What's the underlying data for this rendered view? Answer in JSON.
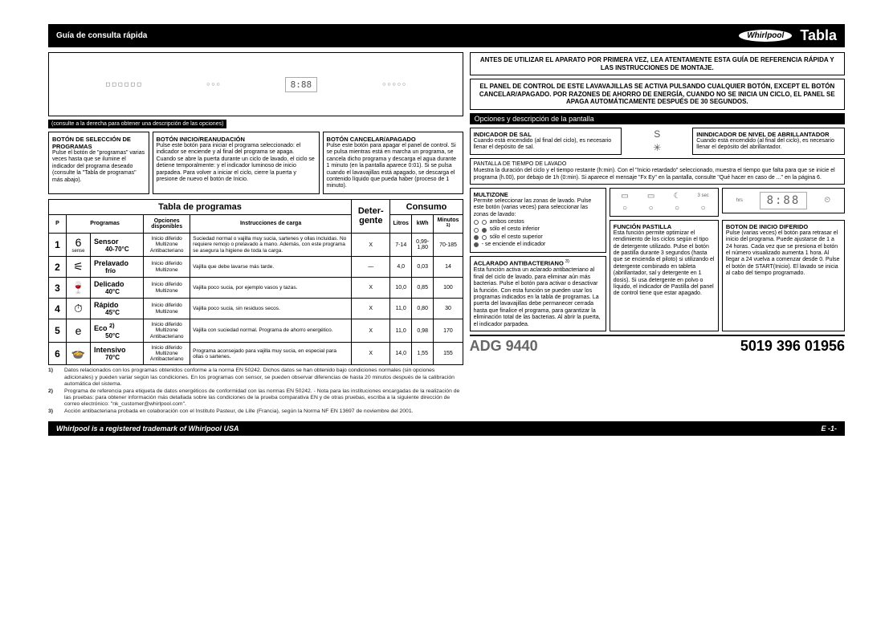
{
  "header": {
    "left": "Guía de consulta rápida",
    "right": "Tabla",
    "logo": "Whirlpool"
  },
  "panel": {
    "display": "8:88",
    "consult_note": "(consulte a la derecha para obtener una descripción de las opciones)"
  },
  "buttons": {
    "select": {
      "title": "BOTÓN DE SELECCIÓN DE PROGRAMAS",
      "body": "Pulse el botón de \"programas\" varias veces hasta que se ilumine el indicador del programa deseado (consulte la \"Tabla de programas\" más abajo)."
    },
    "start": {
      "title": "BOTÓN INICIO/REANUDACIÓN",
      "body": "Pulse este botón para iniciar el programa seleccionado: el indicador se enciende y al final del programa se apaga. Cuando se abre la puerta durante un ciclo de lavado, el ciclo se detiene temporalmente: y el indicador luminoso de inicio parpadea. Para volver a iniciar el ciclo, cierre la puerta y presione de nuevo el botón de Inicio."
    },
    "cancel": {
      "title": "BOTÓN CANCELAR/APAGADO",
      "body": "Pulse este botón para apagar el panel de control. Si se pulsa mientras está en marcha un programa, se cancela dicho programa y descarga el agua durante 1 minuto (en la pantalla aparece 0:01). Si se pulsa cuando el lavavajillas está apagado, se descarga el contenido líquido que pueda haber (proceso de 1 minuto)."
    }
  },
  "intro": {
    "box1": "ANTES DE UTILIZAR EL APARATO POR PRIMERA VEZ, LEA ATENTAMENTE ESTA GUÍA DE REFERENCIA RÁPIDA Y LAS INSTRUCCIONES DE MONTAJE.",
    "box2": "EL PANEL DE CONTROL DE ESTE LAVAVAJILLAS SE ACTIVA PULSANDO CUALQUIER BOTÓN, EXCEPT EL BOTÓN CANCELAR/APAGADO. POR RAZONES DE AHORRO DE ENERGÍA, CUANDO NO SE INICIA UN CICLO, EL PANEL SE APAGA AUTOMÁTICAMENTE DESPUÉS DE 30 SEGUNDOS."
  },
  "options_bar": "Opciones y descripción de la pantalla",
  "indicators": {
    "salt": {
      "title": "INDICADOR DE SAL",
      "body": "Cuando está encendido (al final del ciclo), es necesario llenar el depósito de sal."
    },
    "rinse": {
      "title": "ININDICADOR DE NIVEL DE ABRILLANTADOR",
      "body": "Cuando está encendido (al final del ciclo), es necesario llenar el depósito del abrillantador."
    }
  },
  "pantalla": {
    "title": "PANTALLA DE TIEMPO DE LAVADO",
    "body": "Muestra la duración del ciclo y el tiempo restante (h:min). Con el \"Inicio retardado\" seleccionado, muestra el tiempo que falta para que se inicie el programa (h.00), por debajo de 1h (0:min). Si aparece el mensaje \"Fx Ey\" en la pantalla, consulte \"Qué hacer en caso de ...\" en la página 6."
  },
  "multizone": {
    "title": "MULTIZONE",
    "body": "Permite seleccionar las zonas de lavado. Pulse este botón (varias veces) para seleccionar las zonas de lavado:",
    "opt1": "ambos cestos",
    "opt2": "sólo el cesto inferior",
    "opt3": "sólo el cesto superior",
    "opt4": "- se enciende el indicador"
  },
  "antibac": {
    "title": "ACLARADO ANTIBACTERIANO",
    "sup": "3)",
    "body": "Esta función activa un aclarado antibacteriano al final del ciclo de lavado, para eliminar aún más bacterias. Pulse el botón para activar o desactivar la función. Con esta función se pueden usar los programas indicados en la tabla de programas. La puerta del lavavajillas debe permanecer cerrada hasta que finalice el programa, para garantizar la eliminación total de las bacterias. Al abrir la puerta, el indicador parpadea."
  },
  "tablet": {
    "title": "FUNCIÓN PASTILLA",
    "body": "Esta función permite optimizar el rendimiento de los ciclos según el tipo de detergente utilizado. Pulse el botón de pastilla durante 3 segundos (hasta que se encienda el piloto) si utilizando el detergente combinado en tableta (abrillantador, sal y detergente en 1 dosis). Si usa detergente en polvo o líquido, el indicador de Pastilla del panel de control tiene que estar apagado."
  },
  "delay": {
    "title": "BOTON DE INICIO DIFERIDO",
    "body": "Pulse (varias veces) el botón para retrasar el inicio del programa. Puede ajustarse de 1 a 24 horas. Cada vez que se presiona el botón el número visualizado aumenta 1 hora. Al llegar a 24 vuelva a comenzar desde 0. Pulse el botón de START(Inicio). El lavado se inicia al cabo del tiempo programado."
  },
  "opt_panel": {
    "seg": "8:88",
    "hrs": "hrs",
    "sec": "3 sec"
  },
  "table": {
    "title": "Tabla de programas",
    "h_p": "P",
    "h_prog": "Programas",
    "h_opt": "Opciones disponibles",
    "h_instr": "Instrucciones de carga",
    "h_det": "Deter-gente",
    "h_cons": "Consumo",
    "h_l": "Litros",
    "h_kwh": "kWh",
    "h_min": "Minutos",
    "h_min_sup": "1)",
    "rows": [
      {
        "n": "1",
        "icon": "6",
        "iconlbl": "sense",
        "name": "Sensor",
        "temp": "40-70°C",
        "opt": "Inicio diferido\nMultizone\nAntibacteriano",
        "instr": "Suciedad normal o vajilla muy sucia, sartenes y ollas incluidas. No requiere remojo o prelavado a mano. Además, con este programa se asegura la higiene de toda la carga.",
        "det": "X",
        "l": "7-14",
        "kwh": "0,99-1,80",
        "min": "70-185"
      },
      {
        "n": "2",
        "icon": "⚟",
        "iconlbl": "",
        "name": "Prelavado",
        "temp": "frío",
        "opt": "Inicio diferido\nMultizone",
        "instr": "Vajilla que debe lavarse más tarde.",
        "det": "—",
        "l": "4,0",
        "kwh": "0,03",
        "min": "14"
      },
      {
        "n": "3",
        "icon": "🍷",
        "iconlbl": "",
        "name": "Delicado",
        "temp": "40°C",
        "opt": "Inicio diferido\nMultizone",
        "instr": "Vajilla poco sucia, por ejemplo vasos y tazas.",
        "det": "X",
        "l": "10,0",
        "kwh": "0,85",
        "min": "100"
      },
      {
        "n": "4",
        "icon": "⏱",
        "iconlbl": "",
        "name": "Rápido",
        "temp": "45°C",
        "opt": "Inicio diferido\nMultizone",
        "instr": "Vajilla poco sucia, sin residuos secos.",
        "det": "X",
        "l": "11,0",
        "kwh": "0,80",
        "min": "30"
      },
      {
        "n": "5",
        "icon": "e",
        "iconlbl": "",
        "name": "Eco",
        "name_sup": "2)",
        "temp": "50°C",
        "opt": "Inicio diferido\nMultizone\nAntibacteriano",
        "instr": "Vajilla con suciedad normal. Programa de ahorro energético.",
        "det": "X",
        "l": "11,0",
        "kwh": "0,98",
        "min": "170"
      },
      {
        "n": "6",
        "icon": "🍲",
        "iconlbl": "",
        "name": "Intensivo",
        "temp": "70°C",
        "opt": "Inicio diferido\nMultizone\nAntibacteriano",
        "instr": "Programa aconsejado para vajilla muy sucia, en especial para ollas o sartenes.",
        "det": "X",
        "l": "14,0",
        "kwh": "1,55",
        "min": "155"
      }
    ]
  },
  "footnotes": {
    "f1n": "1)",
    "f1": "Datos relacionados con los programas obtenidos conforme a la norma EN 50242. Dichos datos se han obtenido bajo condiciones normales (sin opciones adicionales) y pueden variar según las condiciones. En los programas con sensor, se pueden observar diferencias de hasta 20 minutos después de la calibración automática del sistema.",
    "f2n": "2)",
    "f2": "Programa de referencia para etiqueta de datos energéticos de conformidad con las normas EN 50242. - Nota para las instituciones encargadas de la realización de las pruebas: para obtener información más detallada sobre las condiciones de la prueba comparativa EN y de otras pruebas, escriba a la siguiente dirección de correo electrónico: \"nk_customer@whirlpool.com\".",
    "f3n": "3)",
    "f3": "Acción antibacteriana probada en colaboración con el Instituto Pasteur, de Lille (Francia), según la Norma NF EN 13697 de noviembre del 2001."
  },
  "model": {
    "name": "ADG 9440",
    "code": "5019 396 01956"
  },
  "footer": {
    "left": "Whirlpool is a registered trademark of Whirlpool USA",
    "right": "E -1-"
  }
}
